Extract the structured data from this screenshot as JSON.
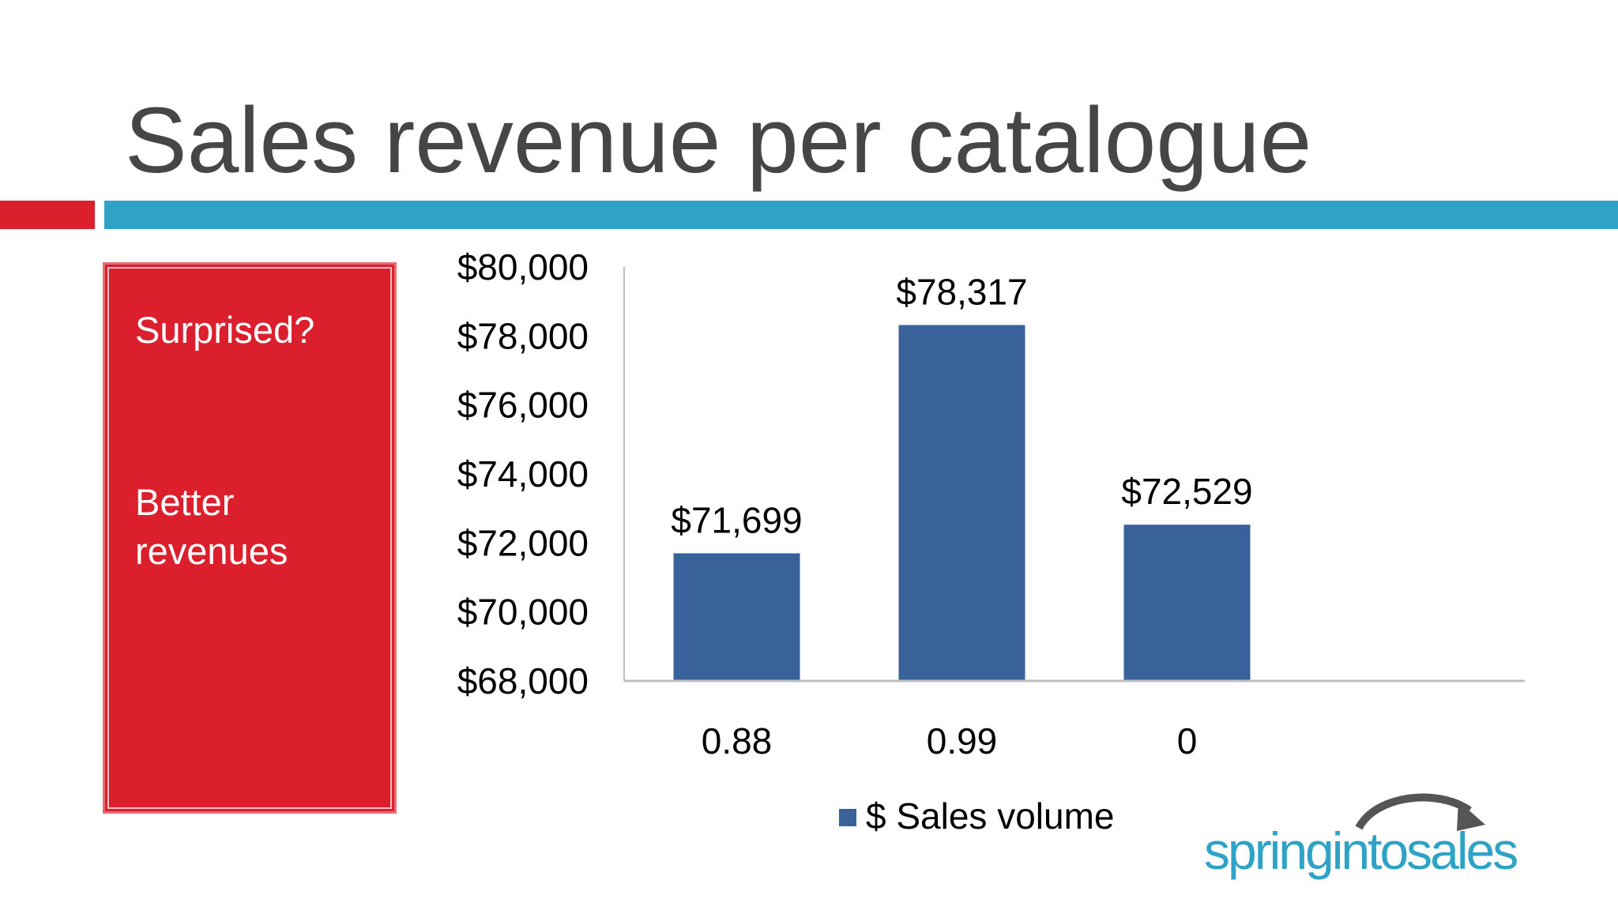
{
  "slide": {
    "title": "Sales revenue per catalogue",
    "sidebar": {
      "line1": "Surprised?",
      "line2": "Better",
      "line3": "revenues"
    },
    "logo": {
      "text": "springintosales",
      "color": "#2ea3c5",
      "arrow_color": "#555555"
    },
    "colors": {
      "title": "#464646",
      "red": "#dc1f2d",
      "blue_rule": "#2ea3c5",
      "bar": "#386299"
    }
  },
  "chart_data": {
    "type": "bar",
    "title": "",
    "xlabel": "",
    "ylabel": "",
    "categories": [
      "0.88",
      "0.99",
      "0"
    ],
    "series": [
      {
        "name": "$ Sales volume",
        "values": [
          71699,
          78317,
          72529
        ],
        "labels": [
          "$71,699",
          "$78,317",
          "$72,529"
        ],
        "color": "#386299"
      }
    ],
    "ylim": [
      68000,
      80000
    ],
    "yticks": [
      80000,
      78000,
      76000,
      74000,
      72000,
      70000,
      68000
    ],
    "ytick_labels": [
      "$80,000",
      "$78,000",
      "$76,000",
      "$74,000",
      "$72,000",
      "$70,000",
      "$68,000"
    ],
    "legend": "bottom",
    "grid": false
  }
}
